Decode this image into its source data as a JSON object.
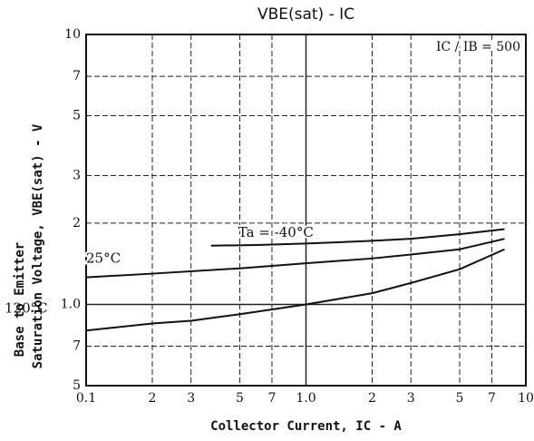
{
  "chart_data": {
    "type": "line",
    "title": "VBE(sat) - IC",
    "annotation": "IC / IB = 500",
    "x_label": "Collector Current, IC - A",
    "y_label": [
      "Base to Emitter",
      "Saturation Voltage, VBE(sat) - V"
    ],
    "xlog": true,
    "ylog": true,
    "grid": true,
    "xlim": [
      0.1,
      10
    ],
    "ylim": [
      0.5,
      10
    ],
    "xticks": [
      0.1,
      {
        "value": 0.2,
        "label": "2"
      },
      {
        "value": 0.3,
        "label": "3"
      },
      {
        "value": 0.5,
        "label": "5"
      },
      {
        "value": 0.7,
        "label": "7"
      },
      {
        "value": 1,
        "label": "1.0"
      },
      2,
      3,
      5,
      7,
      10
    ],
    "yticks": [
      {
        "value": 0.5,
        "label": "5"
      },
      {
        "value": 0.7,
        "label": "7"
      },
      {
        "value": 1,
        "label": "1.0"
      },
      2,
      3,
      5,
      7,
      10
    ],
    "series": [
      {
        "name": "Ta = -40°C",
        "color": "#111111",
        "x": [
          0.37,
          0.6,
          1,
          2,
          3,
          5,
          8
        ],
        "values": [
          1.65,
          1.66,
          1.68,
          1.72,
          1.75,
          1.82,
          1.9
        ]
      },
      {
        "name": "25°C",
        "color": "#111111",
        "x": [
          0.1,
          0.2,
          0.5,
          1,
          2,
          3,
          5,
          8
        ],
        "values": [
          1.26,
          1.3,
          1.36,
          1.42,
          1.48,
          1.53,
          1.6,
          1.75
        ]
      },
      {
        "name": "120°C",
        "color": "#111111",
        "x": [
          0.1,
          0.2,
          0.3,
          0.5,
          1,
          2,
          3,
          5,
          8
        ],
        "values": [
          0.8,
          0.85,
          0.87,
          0.92,
          1.0,
          1.1,
          1.2,
          1.35,
          1.6
        ]
      }
    ]
  }
}
